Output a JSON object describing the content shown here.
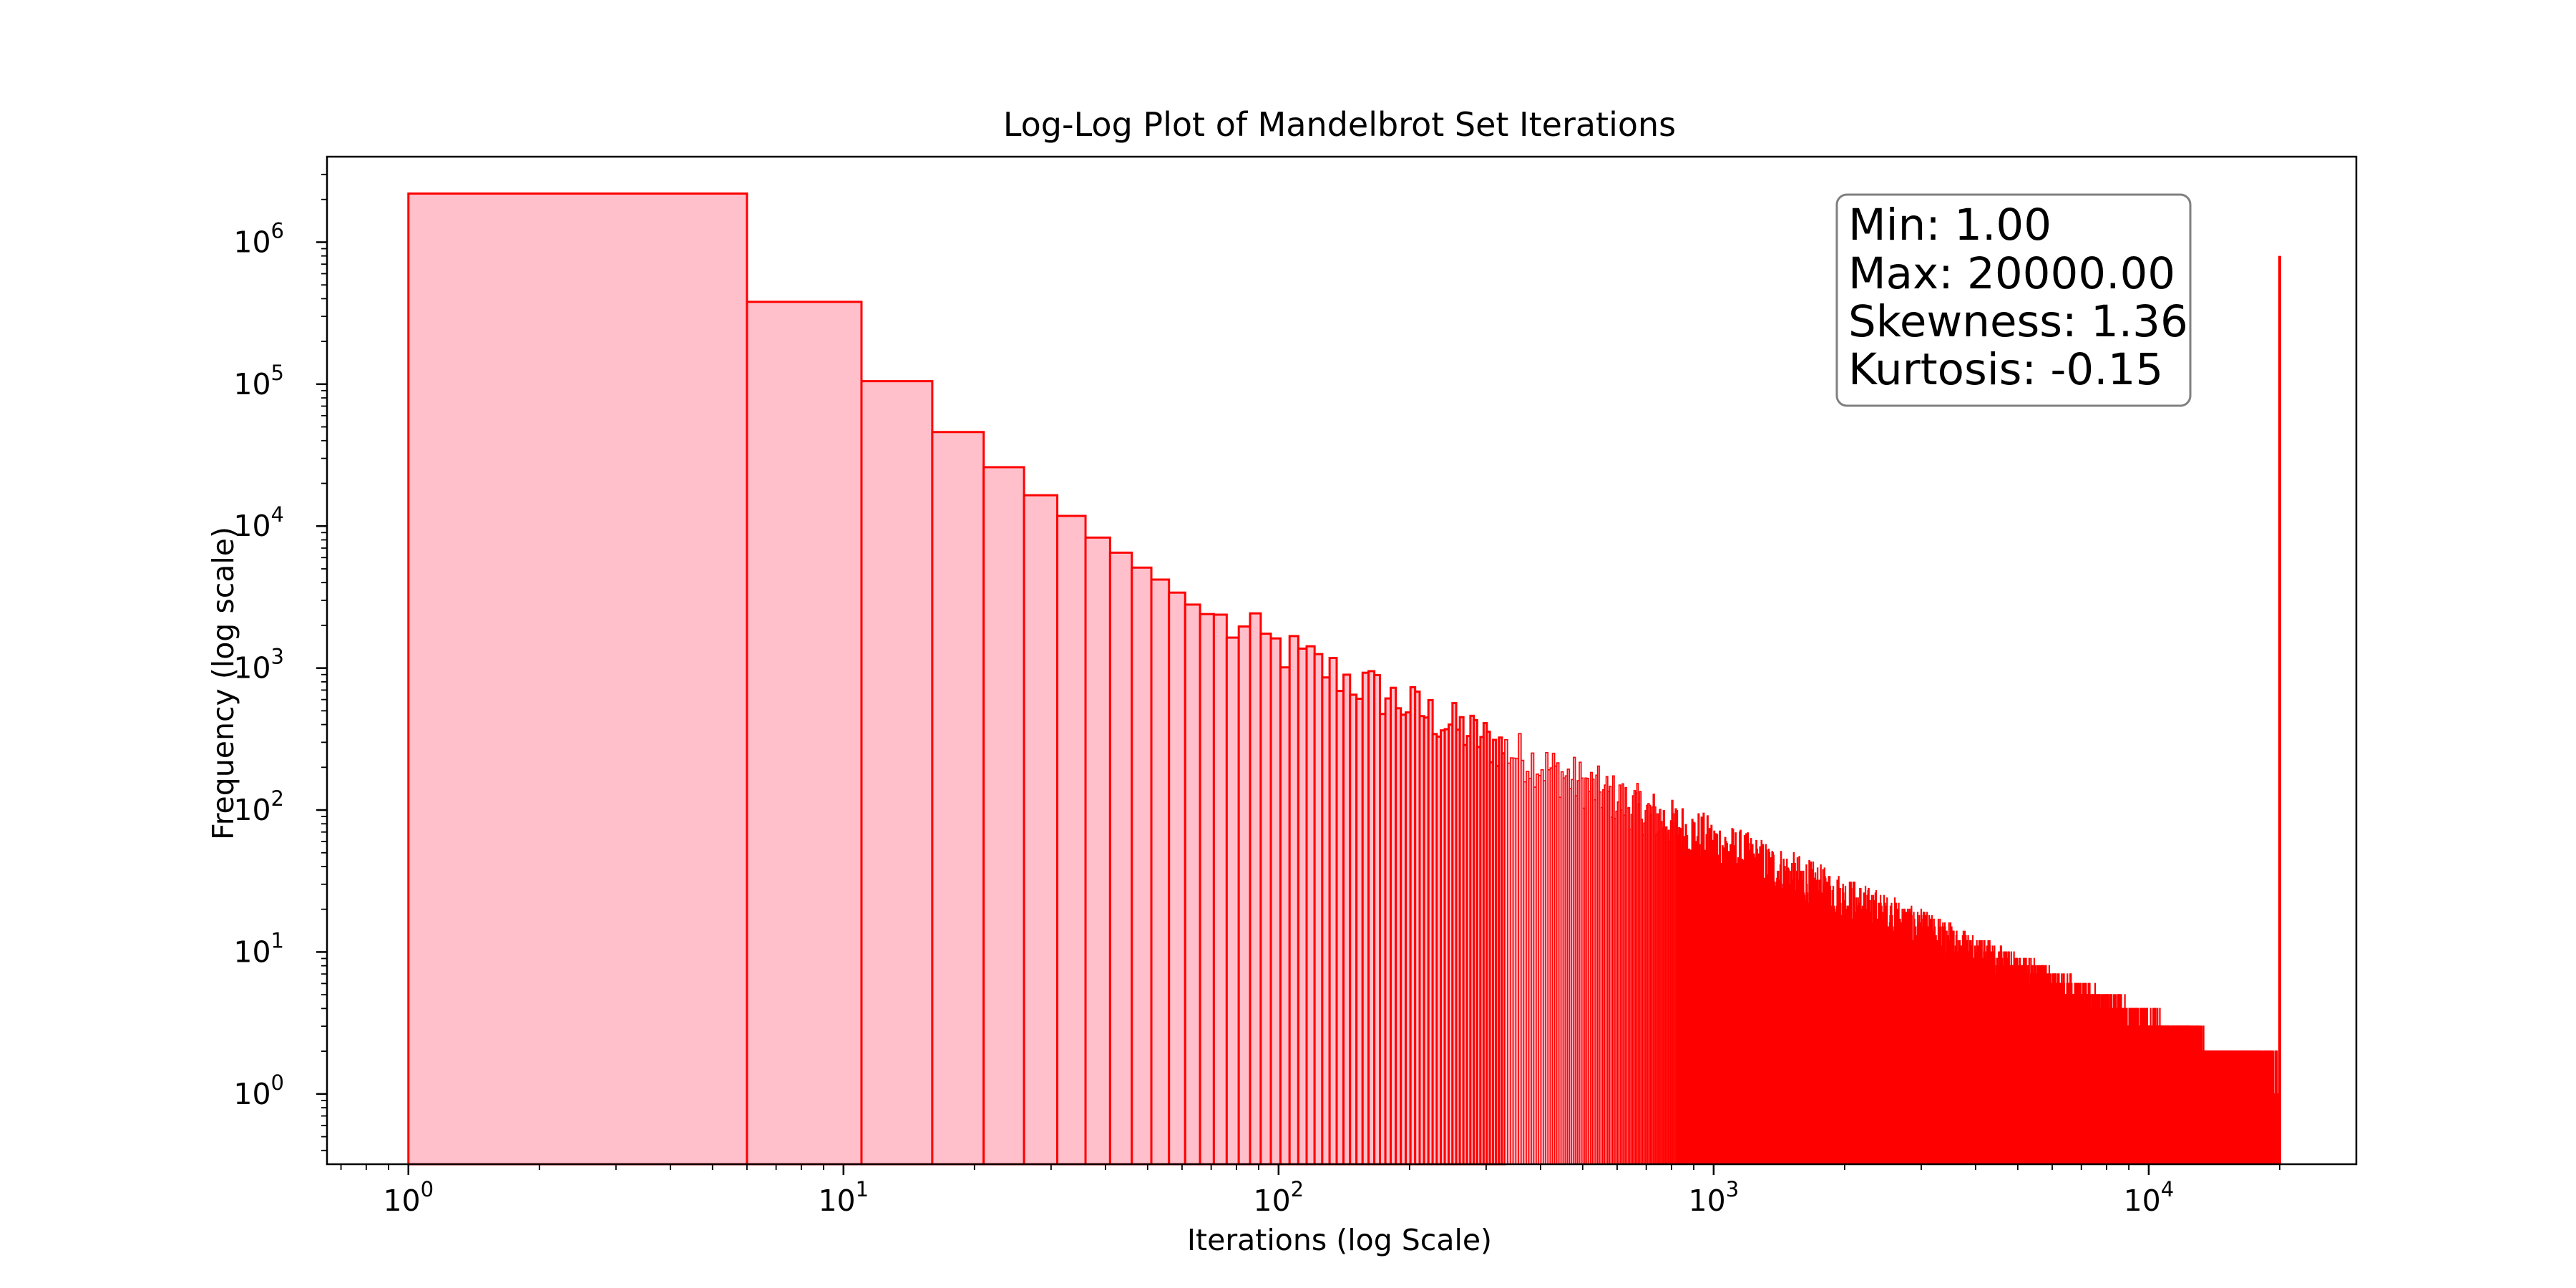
{
  "chart_data": {
    "type": "histogram",
    "title": "Log-Log Plot of Mandelbrot Set Iterations",
    "xlabel": "Iterations (log Scale)",
    "ylabel": "Frequency (log scale)",
    "xscale": "log",
    "yscale": "log",
    "xlim": [
      0.65,
      30000
    ],
    "ylim": [
      0.32,
      4000000
    ],
    "x_tick_labels": [
      {
        "base": "10",
        "exp": "0",
        "value": 1
      },
      {
        "base": "10",
        "exp": "1",
        "value": 10
      },
      {
        "base": "10",
        "exp": "2",
        "value": 100
      },
      {
        "base": "10",
        "exp": "3",
        "value": 1000
      },
      {
        "base": "10",
        "exp": "4",
        "value": 10000
      }
    ],
    "y_tick_labels": [
      {
        "base": "10",
        "exp": "0",
        "value": 1
      },
      {
        "base": "10",
        "exp": "1",
        "value": 10
      },
      {
        "base": "10",
        "exp": "2",
        "value": 100
      },
      {
        "base": "10",
        "exp": "3",
        "value": 1000
      },
      {
        "base": "10",
        "exp": "4",
        "value": 10000
      },
      {
        "base": "10",
        "exp": "5",
        "value": 100000
      },
      {
        "base": "10",
        "exp": "6",
        "value": 1000000
      }
    ],
    "bin_width": 5,
    "bins_first_edge": 1,
    "fill_color": "#ffc0cb",
    "edge_color": "#ff0000",
    "grid": false,
    "bins": [
      {
        "x0": 1,
        "x1": 6,
        "count": 2200000
      },
      {
        "x0": 6,
        "x1": 11,
        "count": 380000
      },
      {
        "x0": 11,
        "x1": 16,
        "count": 105000
      },
      {
        "x0": 16,
        "x1": 21,
        "count": 46000
      },
      {
        "x0": 21,
        "x1": 26,
        "count": 26000
      },
      {
        "x0": 26,
        "x1": 31,
        "count": 16500
      },
      {
        "x0": 31,
        "x1": 36,
        "count": 11800
      },
      {
        "x0": 36,
        "x1": 41,
        "count": 8300
      },
      {
        "x0": 41,
        "x1": 46,
        "count": 6500
      },
      {
        "x0": 46,
        "x1": 51,
        "count": 5100
      },
      {
        "x0": 51,
        "x1": 56,
        "count": 4200
      },
      {
        "x0": 56,
        "x1": 61,
        "count": 3400
      },
      {
        "x0": 61,
        "x1": 66,
        "count": 2800
      },
      {
        "x0": 66,
        "x1": 71,
        "count": 2400
      }
    ],
    "tail": {
      "x_start": 71,
      "x_end": 20000,
      "count_start": 2200,
      "count_end": 1,
      "note": "many narrow bins; frequency declines as a power law to about 1 near 10^4"
    },
    "spike": {
      "x": 20000,
      "count": 800000
    },
    "stats_box": {
      "position": "top-right",
      "lines": [
        "Min: 1.00",
        "Max: 20000.00",
        "Skewness: 1.36",
        "Kurtosis: -0.15"
      ]
    }
  }
}
